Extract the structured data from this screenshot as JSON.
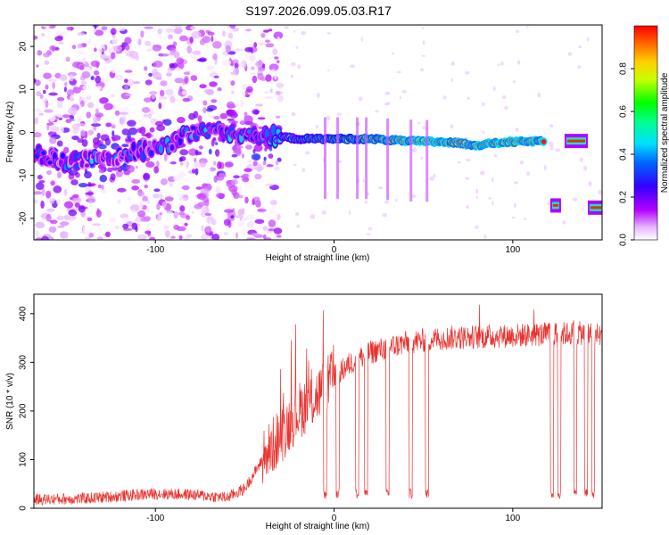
{
  "title": "S197.2026.099.05.03.R17",
  "colors": {
    "snr_line": "#e8332f",
    "colorbar": [
      "#ffffff",
      "#cc00ff",
      "#7a00ff",
      "#0000ff",
      "#00b4ff",
      "#00ffa0",
      "#00ff00",
      "#ffff00",
      "#ff8000",
      "#ff0000"
    ]
  },
  "chart_data": [
    {
      "type": "heatmap",
      "title": "S197.2026.099.05.03.R17",
      "xlabel": "Height of straight line (km)",
      "ylabel": "Frequency (Hz)",
      "xlim": [
        -168,
        150
      ],
      "ylim": [
        -25,
        25
      ],
      "xticks": [
        -100,
        0,
        100
      ],
      "yticks": [
        -20,
        -10,
        0,
        10,
        20
      ],
      "colorbar": {
        "label": "Normalized spectral amplitude",
        "range": [
          0.0,
          1.0
        ],
        "ticks": [
          0.0,
          0.2,
          0.4,
          0.6,
          0.8
        ]
      },
      "main_track_hz": {
        "x": [
          -168,
          -150,
          -130,
          -115,
          -100,
          -90,
          -80,
          -60,
          -40,
          -30,
          -20,
          0,
          20,
          40,
          60,
          70,
          80,
          90,
          100,
          118
        ],
        "y": [
          -5,
          -7,
          -6,
          -5,
          -4,
          -2,
          0,
          0,
          -1,
          -1,
          -1.5,
          -1.5,
          -1.5,
          -2,
          -2.2,
          -2.5,
          -3,
          -2.5,
          -2.2,
          -2
        ]
      },
      "late_segments_hz": [
        {
          "x_range": [
            122,
            126
          ],
          "y": -17
        },
        {
          "x_range": [
            130,
            141
          ],
          "y": -2
        },
        {
          "x_range": [
            143,
            150
          ],
          "y": -17.5
        }
      ]
    },
    {
      "type": "line",
      "xlabel": "Height of straight line (km)",
      "ylabel": "SNR (10 * v/v)",
      "xlim": [
        -168,
        150
      ],
      "ylim": [
        0,
        440
      ],
      "xticks": [
        -100,
        0,
        100
      ],
      "yticks": [
        0,
        100,
        200,
        300,
        400
      ],
      "trend": {
        "x": [
          -168,
          -140,
          -120,
          -100,
          -80,
          -60,
          -50,
          -40,
          -30,
          -20,
          -10,
          0,
          10,
          20,
          30,
          40,
          50,
          60,
          80,
          100,
          120,
          140,
          150
        ],
        "y": [
          18,
          20,
          25,
          30,
          28,
          22,
          40,
          100,
          150,
          200,
          230,
          270,
          300,
          320,
          330,
          340,
          345,
          350,
          352,
          355,
          358,
          360,
          355
        ]
      },
      "dropouts_x": [
        -5,
        2,
        13,
        18,
        30,
        43,
        52,
        122,
        126,
        135,
        141,
        145
      ],
      "spike_max_y": 440
    }
  ]
}
